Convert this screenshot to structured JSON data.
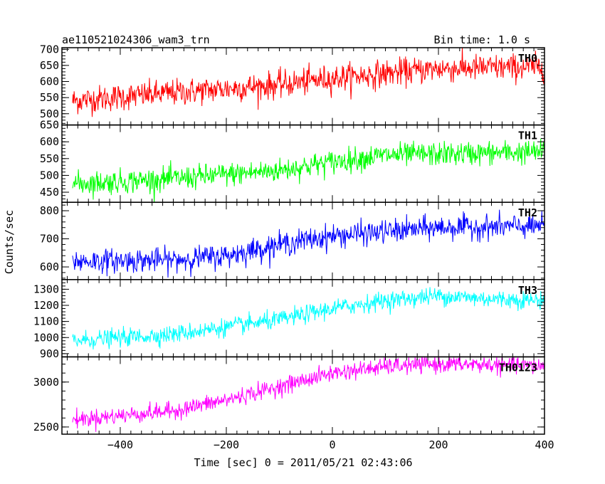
{
  "header": {
    "left_title": "ae110521024306_wam3_trn",
    "right_title": "Bin time: 1.0 s"
  },
  "axes": {
    "ylabel": "Counts/sec",
    "xlabel": "Time [sec] 0 = 2011/05/21 02:43:06"
  },
  "chart_data": {
    "type": "line",
    "x_range": [
      -510,
      400
    ],
    "x_step": 1,
    "x_ticks": [
      -400,
      -200,
      0,
      200,
      400
    ],
    "x_tick_labels": [
      "−400",
      "−200",
      "0",
      "200",
      "400"
    ],
    "panels": [
      {
        "name": "TH0",
        "color": "#ff0000",
        "ylim": [
          465,
          705
        ],
        "y_ticks": [
          500,
          550,
          600,
          650,
          700
        ],
        "trend": [
          [
            -490,
            540
          ],
          [
            -300,
            565
          ],
          [
            -100,
            590
          ],
          [
            0,
            610
          ],
          [
            200,
            640
          ],
          [
            400,
            645
          ]
        ],
        "noise": 38
      },
      {
        "name": "TH1",
        "color": "#00ff00",
        "ylim": [
          420,
          650
        ],
        "y_ticks": [
          450,
          500,
          550,
          600,
          650
        ],
        "trend": [
          [
            -490,
            475
          ],
          [
            -300,
            490
          ],
          [
            -100,
            515
          ],
          [
            0,
            540
          ],
          [
            100,
            560
          ],
          [
            400,
            570
          ]
        ],
        "noise": 32
      },
      {
        "name": "TH2",
        "color": "#0000ff",
        "ylim": [
          555,
          830
        ],
        "y_ticks": [
          600,
          700,
          800
        ],
        "trend": [
          [
            -490,
            620
          ],
          [
            -300,
            625
          ],
          [
            -200,
            640
          ],
          [
            -100,
            680
          ],
          [
            0,
            710
          ],
          [
            200,
            740
          ],
          [
            400,
            745
          ]
        ],
        "noise": 38
      },
      {
        "name": "TH3",
        "color": "#00ffff",
        "ylim": [
          880,
          1360
        ],
        "y_ticks": [
          900,
          1000,
          1100,
          1200,
          1300
        ],
        "trend": [
          [
            -490,
            980
          ],
          [
            -300,
            1020
          ],
          [
            -100,
            1110
          ],
          [
            0,
            1180
          ],
          [
            100,
            1230
          ],
          [
            200,
            1260
          ],
          [
            300,
            1240
          ],
          [
            400,
            1230
          ]
        ],
        "noise": 50
      },
      {
        "name": "TH0123",
        "color": "#ff00ff",
        "ylim": [
          2420,
          3280
        ],
        "y_ticks": [
          2500,
          3000
        ],
        "trend": [
          [
            -490,
            2580
          ],
          [
            -300,
            2680
          ],
          [
            -200,
            2800
          ],
          [
            -100,
            2950
          ],
          [
            0,
            3100
          ],
          [
            100,
            3170
          ],
          [
            200,
            3200
          ],
          [
            400,
            3180
          ]
        ],
        "noise": 85
      }
    ]
  }
}
